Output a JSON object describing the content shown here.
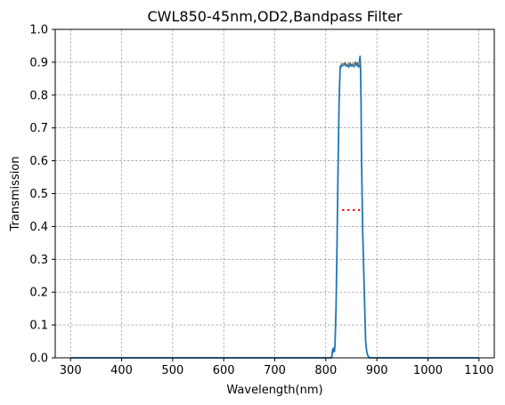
{
  "chart_data": {
    "type": "line",
    "title": "CWL850-45nm,OD2,Bandpass Filter",
    "xlabel": "Wavelength(nm)",
    "ylabel": "Transmission",
    "xlim": [
      270,
      1130
    ],
    "ylim": [
      0,
      1.0
    ],
    "xticks": [
      300,
      400,
      500,
      600,
      700,
      800,
      900,
      1000,
      1100
    ],
    "yticks": [
      0.0,
      0.1,
      0.2,
      0.3,
      0.4,
      0.5,
      0.6,
      0.7,
      0.8,
      0.9,
      1.0
    ],
    "ytick_labels": [
      "0.0",
      "0.1",
      "0.2",
      "0.3",
      "0.4",
      "0.5",
      "0.6",
      "0.7",
      "0.8",
      "0.9",
      "1.0"
    ],
    "grid": true,
    "series": [
      {
        "color": "#1f77b4",
        "x": [
          300,
          810,
          812,
          813,
          814,
          815,
          816,
          817,
          818,
          820,
          822,
          824,
          826,
          828,
          829,
          830,
          832,
          835,
          838,
          840,
          843,
          845,
          848,
          850,
          853,
          855,
          858,
          860,
          862,
          864,
          865,
          866,
          867,
          868,
          869,
          870,
          872,
          875,
          878,
          880,
          882,
          884,
          886,
          1100
        ],
        "y": [
          0.0,
          0.0,
          0.005,
          0.02,
          0.028,
          0.018,
          0.03,
          0.02,
          0.04,
          0.15,
          0.35,
          0.58,
          0.78,
          0.88,
          0.89,
          0.885,
          0.895,
          0.89,
          0.898,
          0.888,
          0.893,
          0.885,
          0.897,
          0.888,
          0.894,
          0.886,
          0.9,
          0.89,
          0.897,
          0.885,
          0.888,
          0.905,
          0.918,
          0.885,
          0.78,
          0.6,
          0.4,
          0.22,
          0.05,
          0.02,
          0.008,
          0.002,
          0.0,
          0.0
        ]
      },
      {
        "color": "#ff0000",
        "style": "dotted",
        "x": [
          832,
          867
        ],
        "y": [
          0.45,
          0.45
        ]
      },
      {
        "color": "#ff7f0e",
        "style": "dotted",
        "x": [
          832,
          867
        ],
        "y": [
          0.895,
          0.895
        ]
      }
    ]
  }
}
